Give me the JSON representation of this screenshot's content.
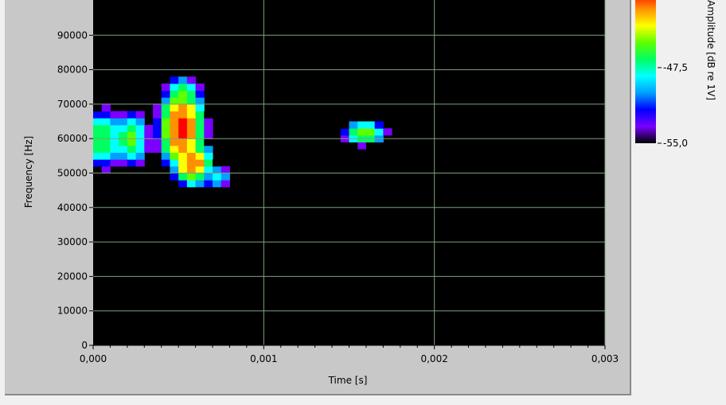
{
  "chart_data": {
    "type": "heatmap",
    "title": "",
    "xlabel": "Time [s]",
    "ylabel": "Frequency [Hz]",
    "xlim": [
      0,
      0.003
    ],
    "ylim": [
      0,
      100000
    ],
    "x_ticks": [
      {
        "value": 0,
        "label": "0,000"
      },
      {
        "value": 0.001,
        "label": "0,001"
      },
      {
        "value": 0.002,
        "label": "0,002"
      },
      {
        "value": 0.003,
        "label": "0,003"
      }
    ],
    "y_ticks": [
      {
        "value": 0,
        "label": "0"
      },
      {
        "value": 10000,
        "label": "10000"
      },
      {
        "value": 20000,
        "label": "20000"
      },
      {
        "value": 30000,
        "label": "30000"
      },
      {
        "value": 40000,
        "label": "40000"
      },
      {
        "value": 50000,
        "label": "50000"
      },
      {
        "value": 60000,
        "label": "60000"
      },
      {
        "value": 70000,
        "label": "70000"
      },
      {
        "value": 80000,
        "label": "80000"
      },
      {
        "value": 90000,
        "label": "90000"
      }
    ],
    "colorbar": {
      "label": "Amplitude [dB re 1V]",
      "range": [
        -55.0,
        -40.0
      ],
      "ticks": [
        {
          "value": -47.5,
          "label": "-47,5"
        },
        {
          "value": -55.0,
          "label": "-55,0"
        }
      ],
      "colormap": [
        "#000000",
        "#7a00ff",
        "#0000ff",
        "#00a0ff",
        "#00ffff",
        "#00ff60",
        "#60ff00",
        "#ffff00",
        "#ff9000",
        "#ff0000"
      ]
    },
    "background_color": "#000000",
    "grid": true,
    "grid_color": "#7f9f7f",
    "blobs": [
      {
        "t": 6e-05,
        "f": 60000,
        "st": 0.00011,
        "sf": 7500,
        "peak": -46
      },
      {
        "t": 0.00022,
        "f": 60000,
        "st": 9e-05,
        "sf": 6500,
        "peak": -45.5
      },
      {
        "t": 0.00052,
        "f": 63000,
        "st": 0.0001,
        "sf": 9000,
        "peak": -40
      },
      {
        "t": 0.00058,
        "f": 53000,
        "st": 9e-05,
        "sf": 5000,
        "peak": -41
      },
      {
        "t": 0.00052,
        "f": 73000,
        "st": 9e-05,
        "sf": 4000,
        "peak": -45
      },
      {
        "t": 0.00072,
        "f": 49000,
        "st": 8e-05,
        "sf": 3000,
        "peak": -48
      },
      {
        "t": 0.00159,
        "f": 61700,
        "st": 0.0001,
        "sf": 2800,
        "peak": -44
      }
    ]
  }
}
